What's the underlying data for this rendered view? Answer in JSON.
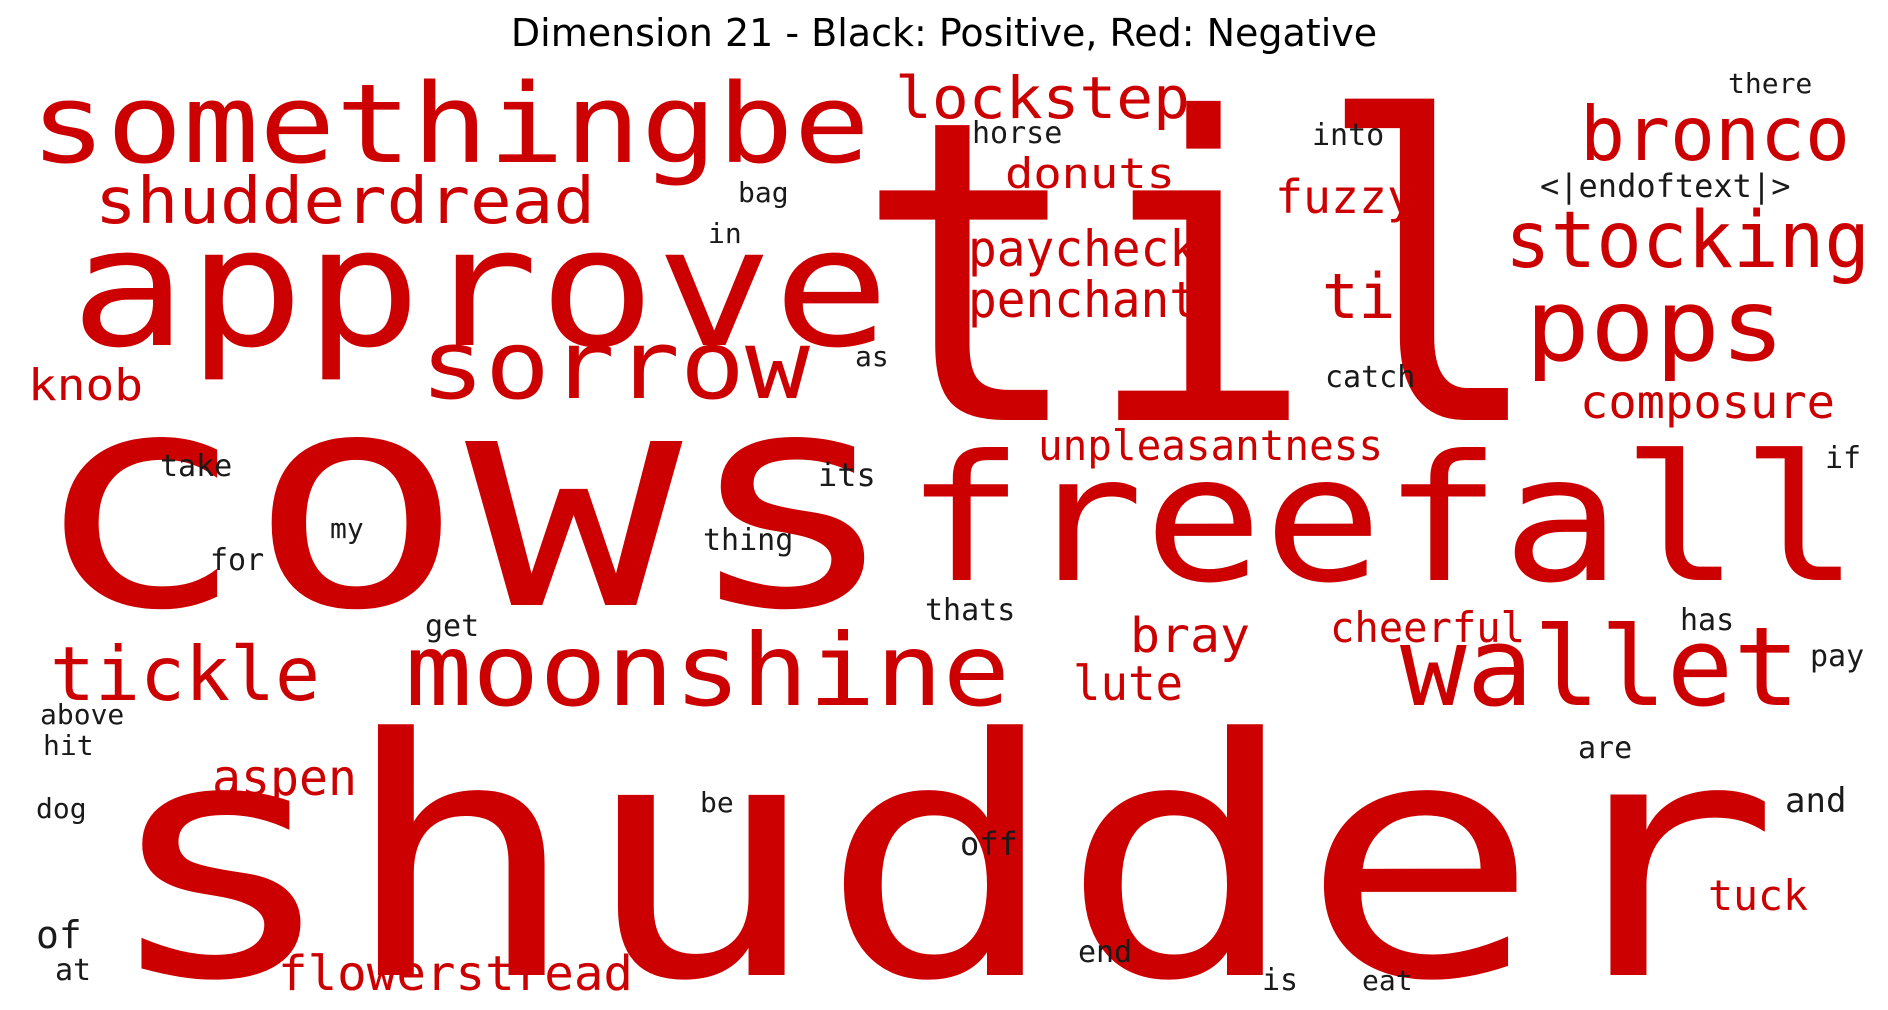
{
  "title": "Dimension 21 - Black: Positive, Red: Negative",
  "colors": {
    "positive": "#1a1a1a",
    "negative": "#cc0000",
    "background": "#ffffff"
  },
  "words": [
    {
      "text": "shudder",
      "polarity": "negative"
    },
    {
      "text": "cows",
      "polarity": "negative"
    },
    {
      "text": "til",
      "polarity": "negative"
    },
    {
      "text": "freefall",
      "polarity": "negative"
    },
    {
      "text": "approve",
      "polarity": "negative"
    },
    {
      "text": "somethingbe",
      "polarity": "negative"
    },
    {
      "text": "moonshine",
      "polarity": "negative"
    },
    {
      "text": "wallet",
      "polarity": "negative"
    },
    {
      "text": "pops",
      "polarity": "negative"
    },
    {
      "text": "sorrow",
      "polarity": "negative"
    },
    {
      "text": "stocking",
      "polarity": "negative"
    },
    {
      "text": "bronco",
      "polarity": "negative"
    },
    {
      "text": "tickle",
      "polarity": "negative"
    },
    {
      "text": "shudderdread",
      "polarity": "negative"
    },
    {
      "text": "lockstep",
      "polarity": "negative"
    },
    {
      "text": "paycheck",
      "polarity": "negative"
    },
    {
      "text": "penchant",
      "polarity": "negative"
    },
    {
      "text": "tis",
      "polarity": "negative"
    },
    {
      "text": "composure",
      "polarity": "negative"
    },
    {
      "text": "unpleasantness",
      "polarity": "negative"
    },
    {
      "text": "fuzzy",
      "polarity": "negative"
    },
    {
      "text": "donuts",
      "polarity": "negative"
    },
    {
      "text": "knob",
      "polarity": "negative"
    },
    {
      "text": "bray",
      "polarity": "negative"
    },
    {
      "text": "cheerful",
      "polarity": "negative"
    },
    {
      "text": "lute",
      "polarity": "negative"
    },
    {
      "text": "aspen",
      "polarity": "negative"
    },
    {
      "text": "flowerstread",
      "polarity": "negative"
    },
    {
      "text": "tuck",
      "polarity": "negative"
    },
    {
      "text": "there",
      "polarity": "positive"
    },
    {
      "text": "horse",
      "polarity": "positive"
    },
    {
      "text": "into",
      "polarity": "positive"
    },
    {
      "text": "<|endoftext|>",
      "polarity": "positive"
    },
    {
      "text": "bag",
      "polarity": "positive"
    },
    {
      "text": "in",
      "polarity": "positive"
    },
    {
      "text": "as",
      "polarity": "positive"
    },
    {
      "text": "catch",
      "polarity": "positive"
    },
    {
      "text": "take",
      "polarity": "positive"
    },
    {
      "text": "its",
      "polarity": "positive"
    },
    {
      "text": "if",
      "polarity": "positive"
    },
    {
      "text": "my",
      "polarity": "positive"
    },
    {
      "text": "thing",
      "polarity": "positive"
    },
    {
      "text": "for",
      "polarity": "positive"
    },
    {
      "text": "thats",
      "polarity": "positive"
    },
    {
      "text": "get",
      "polarity": "positive"
    },
    {
      "text": "has",
      "polarity": "positive"
    },
    {
      "text": "pay",
      "polarity": "positive"
    },
    {
      "text": "above",
      "polarity": "positive"
    },
    {
      "text": "hit",
      "polarity": "positive"
    },
    {
      "text": "are",
      "polarity": "positive"
    },
    {
      "text": "dog",
      "polarity": "positive"
    },
    {
      "text": "be",
      "polarity": "positive"
    },
    {
      "text": "and",
      "polarity": "positive"
    },
    {
      "text": "off",
      "polarity": "positive"
    },
    {
      "text": "of",
      "polarity": "positive"
    },
    {
      "text": "at",
      "polarity": "positive"
    },
    {
      "text": "end",
      "polarity": "positive"
    },
    {
      "text": "is",
      "polarity": "positive"
    },
    {
      "text": "eat",
      "polarity": "positive"
    }
  ]
}
